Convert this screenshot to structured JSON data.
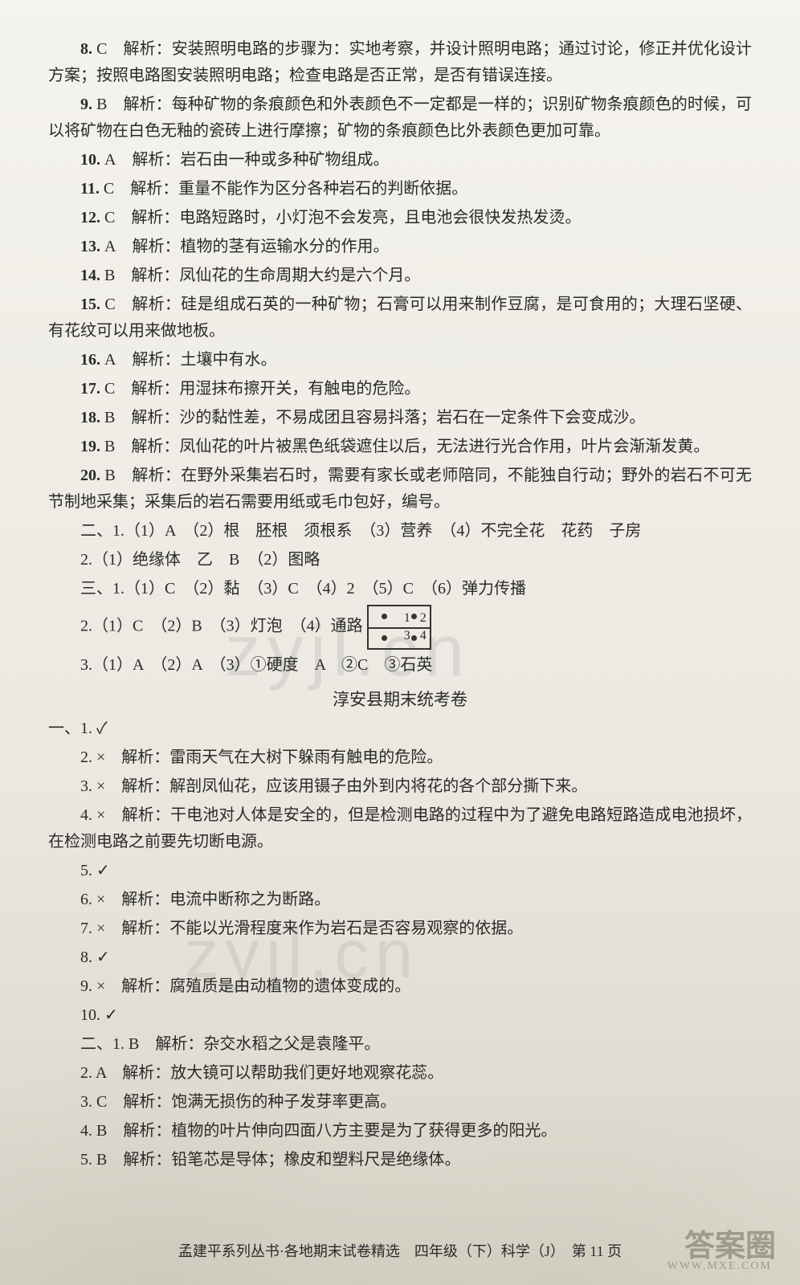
{
  "watermarks": {
    "wm1": "zyjl.cn",
    "wm2": "zyjl.cn"
  },
  "questions": [
    {
      "num": "8.",
      "ans": "C",
      "text": "解析：安装照明电路的步骤为：实地考察，并设计照明电路；通过讨论，修正并优化设计方案；按照电路图安装照明电路；检查电路是否正常，是否有错误连接。",
      "indent": true
    },
    {
      "num": "9.",
      "ans": "B",
      "text": "解析：每种矿物的条痕颜色和外表颜色不一定都是一样的；识别矿物条痕颜色的时候，可以将矿物在白色无釉的瓷砖上进行摩擦；矿物的条痕颜色比外表颜色更加可靠。",
      "indent": true
    },
    {
      "num": "10.",
      "ans": "A",
      "text": "解析：岩石由一种或多种矿物组成。",
      "indent": true
    },
    {
      "num": "11.",
      "ans": "C",
      "text": "解析：重量不能作为区分各种岩石的判断依据。",
      "indent": true
    },
    {
      "num": "12.",
      "ans": "C",
      "text": "解析：电路短路时，小灯泡不会发亮，且电池会很快发热发烫。",
      "indent": true
    },
    {
      "num": "13.",
      "ans": "A",
      "text": "解析：植物的茎有运输水分的作用。",
      "indent": true
    },
    {
      "num": "14.",
      "ans": "B",
      "text": "解析：凤仙花的生命周期大约是六个月。",
      "indent": true
    },
    {
      "num": "15.",
      "ans": "C",
      "text": "解析：硅是组成石英的一种矿物；石膏可以用来制作豆腐，是可食用的；大理石坚硬、有花纹可以用来做地板。",
      "indent": true
    },
    {
      "num": "16.",
      "ans": "A",
      "text": "解析：土壤中有水。",
      "indent": true
    },
    {
      "num": "17.",
      "ans": "C",
      "text": "解析：用湿抹布擦开关，有触电的危险。",
      "indent": true
    },
    {
      "num": "18.",
      "ans": "B",
      "text": "解析：沙的黏性差，不易成团且容易抖落；岩石在一定条件下会变成沙。",
      "indent": true
    },
    {
      "num": "19.",
      "ans": "B",
      "text": "解析：凤仙花的叶片被黑色纸袋遮住以后，无法进行光合作用，叶片会渐渐发黄。",
      "indent": true
    },
    {
      "num": "20.",
      "ans": "B",
      "text": "解析：在野外采集岩石时，需要有家长或老师陪同，不能独自行动；野外的岩石不可无节制地采集；采集后的岩石需要用纸或毛巾包好，编号。",
      "indent": true
    }
  ],
  "section2": {
    "line1": "二、1.（1）A　（2）根　胚根　须根系　（3）营养　（4）不完全花　花药　子房",
    "line2": "2.（1）绝缘体　乙　B　（2）图略",
    "line3": "三、1.（1）C　（2）黏　（3）C　（4）2　（5）C　（6）弹力传播",
    "line4_pre": "2.（1）C　（2）B　（3）灯泡　（4）通路",
    "line5": "3.（1）A　（2）A　（3）①硬度　A　②C　③石英"
  },
  "circuit": {
    "labels": {
      "tl": "1",
      "tr": "2",
      "bl": "3",
      "br": "4"
    }
  },
  "exam_title": "淳安县期末统考卷",
  "section3": [
    {
      "text": "一、1. ✓",
      "indent": false
    },
    {
      "text": "2. ×　解析：雷雨天气在大树下躲雨有触电的危险。",
      "indent": true
    },
    {
      "text": "3. ×　解析：解剖凤仙花，应该用镊子由外到内将花的各个部分撕下来。",
      "indent": true
    },
    {
      "text": "4. ×　解析：干电池对人体是安全的，但是检测电路的过程中为了避免电路短路造成电池损坏，在检测电路之前要先切断电源。",
      "indent": true
    },
    {
      "text": "5. ✓",
      "indent": true
    },
    {
      "text": "6. ×　解析：电流中断称之为断路。",
      "indent": true
    },
    {
      "text": "7. ×　解析：不能以光滑程度来作为岩石是否容易观察的依据。",
      "indent": true
    },
    {
      "text": "8. ✓",
      "indent": true
    },
    {
      "text": "9. ×　解析：腐殖质是由动植物的遗体变成的。",
      "indent": true
    },
    {
      "text": "10. ✓",
      "indent": true
    },
    {
      "text": "二、1. B　解析：杂交水稻之父是袁隆平。",
      "indent": true
    },
    {
      "text": "2. A　解析：放大镜可以帮助我们更好地观察花蕊。",
      "indent": true
    },
    {
      "text": "3. C　解析：饱满无损伤的种子发芽率更高。",
      "indent": true
    },
    {
      "text": "4. B　解析：植物的叶片伸向四面八方主要是为了获得更多的阳光。",
      "indent": true
    },
    {
      "text": "5. B　解析：铅笔芯是导体；橡皮和塑料尺是绝缘体。",
      "indent": true
    }
  ],
  "footer": "孟建平系列丛书·各地期末试卷精选　四年级（下）科学（J）　第 11 页",
  "corner": {
    "main": "答案圈",
    "sub": "WWW.MXE.COM"
  }
}
